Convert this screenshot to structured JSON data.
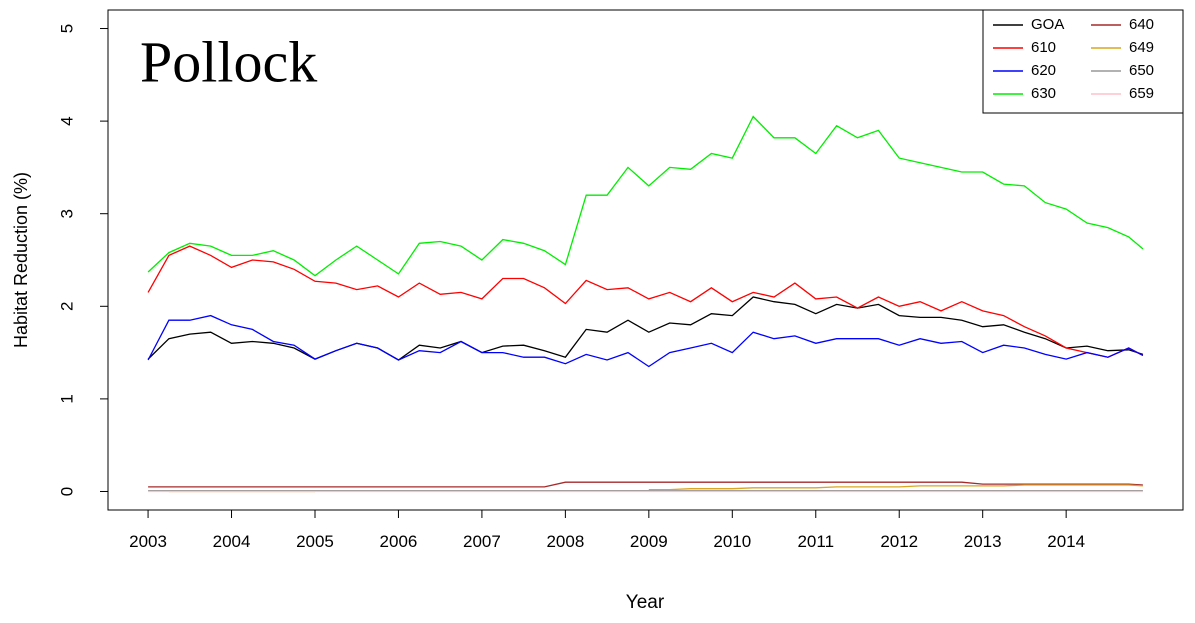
{
  "chart_data": {
    "type": "line",
    "title": "Pollock",
    "x_label": "Year",
    "y_label": "Habitat Reduction (%)",
    "x": [
      2003,
      2003.25,
      2003.5,
      2003.75,
      2004,
      2004.25,
      2004.5,
      2004.75,
      2005,
      2005.25,
      2005.5,
      2005.75,
      2006,
      2006.25,
      2006.5,
      2006.75,
      2007,
      2007.25,
      2007.5,
      2007.75,
      2008,
      2008.25,
      2008.5,
      2008.75,
      2009,
      2009.25,
      2009.5,
      2009.75,
      2010,
      2010.25,
      2010.5,
      2010.75,
      2011,
      2011.25,
      2011.5,
      2011.75,
      2012,
      2012.25,
      2012.5,
      2012.75,
      2013,
      2013.25,
      2013.5,
      2013.75,
      2014,
      2014.25,
      2014.5,
      2014.75,
      2014.92
    ],
    "series": [
      {
        "name": "GOA",
        "color": "#000000",
        "values": [
          1.43,
          1.65,
          1.7,
          1.72,
          1.6,
          1.62,
          1.6,
          1.55,
          1.43,
          1.52,
          1.6,
          1.55,
          1.42,
          1.58,
          1.55,
          1.62,
          1.5,
          1.57,
          1.58,
          1.52,
          1.45,
          1.75,
          1.72,
          1.85,
          1.72,
          1.82,
          1.8,
          1.92,
          1.9,
          2.1,
          2.05,
          2.02,
          1.92,
          2.02,
          1.98,
          2.02,
          1.9,
          1.88,
          1.88,
          1.85,
          1.78,
          1.8,
          1.72,
          1.65,
          1.55,
          1.57,
          1.52,
          1.53,
          1.48
        ]
      },
      {
        "name": "610",
        "color": "#ff0000",
        "values": [
          2.15,
          2.55,
          2.65,
          2.55,
          2.42,
          2.5,
          2.48,
          2.4,
          2.27,
          2.25,
          2.18,
          2.22,
          2.1,
          2.25,
          2.13,
          2.15,
          2.08,
          2.3,
          2.3,
          2.2,
          2.03,
          2.28,
          2.18,
          2.2,
          2.08,
          2.15,
          2.05,
          2.2,
          2.05,
          2.15,
          2.1,
          2.25,
          2.08,
          2.1,
          1.98,
          2.1,
          2.0,
          2.05,
          1.95,
          2.05,
          1.95,
          1.9,
          1.78,
          1.68,
          1.55,
          1.5,
          1.45,
          1.55,
          1.47
        ]
      },
      {
        "name": "620",
        "color": "#0000ff",
        "values": [
          1.42,
          1.85,
          1.85,
          1.9,
          1.8,
          1.75,
          1.62,
          1.58,
          1.43,
          1.52,
          1.6,
          1.55,
          1.42,
          1.52,
          1.5,
          1.62,
          1.5,
          1.5,
          1.45,
          1.45,
          1.38,
          1.48,
          1.42,
          1.5,
          1.35,
          1.5,
          1.55,
          1.6,
          1.5,
          1.72,
          1.65,
          1.68,
          1.6,
          1.65,
          1.65,
          1.65,
          1.58,
          1.65,
          1.6,
          1.62,
          1.5,
          1.58,
          1.55,
          1.48,
          1.43,
          1.5,
          1.45,
          1.55,
          1.47
        ]
      },
      {
        "name": "630",
        "color": "#00ee00",
        "values": [
          2.37,
          2.58,
          2.68,
          2.65,
          2.55,
          2.55,
          2.6,
          2.5,
          2.33,
          2.5,
          2.65,
          2.5,
          2.35,
          2.68,
          2.7,
          2.65,
          2.5,
          2.72,
          2.68,
          2.6,
          2.45,
          3.2,
          3.2,
          3.5,
          3.3,
          3.5,
          3.48,
          3.65,
          3.6,
          4.05,
          3.82,
          3.82,
          3.65,
          3.95,
          3.82,
          3.9,
          3.6,
          3.55,
          3.5,
          3.45,
          3.45,
          3.32,
          3.3,
          3.12,
          3.05,
          2.9,
          2.85,
          2.75,
          2.62
        ]
      },
      {
        "name": "640",
        "color": "#a52a2a",
        "values": [
          0.05,
          0.05,
          0.05,
          0.05,
          0.05,
          0.05,
          0.05,
          0.05,
          0.05,
          0.05,
          0.05,
          0.05,
          0.05,
          0.05,
          0.05,
          0.05,
          0.05,
          0.05,
          0.05,
          0.05,
          0.1,
          0.1,
          0.1,
          0.1,
          0.1,
          0.1,
          0.1,
          0.1,
          0.1,
          0.1,
          0.1,
          0.1,
          0.1,
          0.1,
          0.1,
          0.1,
          0.1,
          0.1,
          0.1,
          0.1,
          0.08,
          0.08,
          0.08,
          0.08,
          0.08,
          0.08,
          0.08,
          0.08,
          0.07
        ]
      },
      {
        "name": "649",
        "color": "#daa520",
        "values": [
          null,
          0,
          0,
          0,
          0,
          0,
          0,
          0,
          0,
          null,
          null,
          null,
          null,
          null,
          null,
          null,
          null,
          null,
          null,
          null,
          null,
          null,
          null,
          null,
          0.02,
          0.02,
          0.03,
          0.03,
          0.03,
          0.04,
          0.04,
          0.04,
          0.04,
          0.05,
          0.05,
          0.05,
          0.05,
          0.06,
          0.06,
          0.06,
          0.06,
          0.06,
          0.07,
          0.07,
          0.07,
          0.07,
          0.07,
          0.07,
          0.06
        ]
      },
      {
        "name": "650",
        "color": "#999999",
        "values": [
          0.01,
          0.01,
          0.01,
          0.01,
          0.01,
          0.01,
          0.01,
          0.01,
          0.01,
          0.01,
          0.01,
          0.01,
          0.01,
          0.01,
          0.01,
          0.01,
          0.01,
          0.01,
          0.01,
          0.01,
          0.01,
          0.01,
          0.01,
          0.01,
          0.01,
          0.01,
          0.01,
          0.01,
          0.01,
          0.01,
          0.01,
          0.01,
          0.01,
          0.01,
          0.01,
          0.01,
          0.01,
          0.01,
          0.01,
          0.01,
          0.01,
          0.01,
          0.01,
          0.01,
          0.01,
          0.01,
          0.01,
          0.01,
          0.01
        ]
      },
      {
        "name": "659",
        "color": "#ffc0cb",
        "values": [
          0,
          0,
          0,
          0,
          0,
          0,
          0,
          0,
          0,
          0,
          0,
          0,
          0,
          0,
          0,
          0,
          0,
          0,
          0,
          0,
          0,
          0,
          0,
          0,
          0,
          0,
          0,
          0,
          0,
          0,
          0,
          0,
          0,
          0,
          0,
          0,
          0,
          0,
          0,
          0,
          0,
          0,
          0,
          0,
          0,
          0,
          0,
          0,
          0
        ]
      }
    ],
    "xlim": [
      2002.52,
      2015.4
    ],
    "ylim": [
      -0.2,
      5.2
    ],
    "xticks": [
      2003,
      2004,
      2005,
      2006,
      2007,
      2008,
      2009,
      2010,
      2011,
      2012,
      2013,
      2014
    ],
    "yticks": [
      0,
      1,
      2,
      3,
      4,
      5
    ]
  }
}
